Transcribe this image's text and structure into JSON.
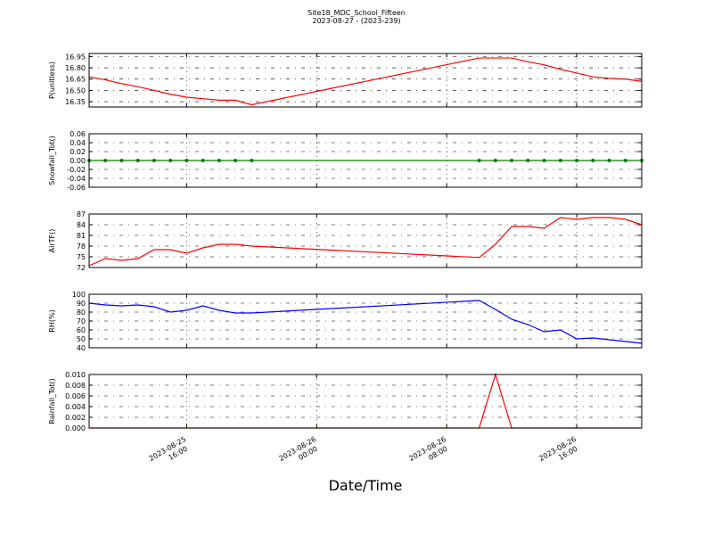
{
  "title": "Site18_MDC_School_Fifteen",
  "subtitle": "2023-08-27 - (2023-239)",
  "xlabel": "Date/Time",
  "xlim": [
    "2023-08-25 10:00",
    "2023-08-26 20:00"
  ],
  "xticks": [
    {
      "value": "2023-08-25 16:00",
      "label": [
        "2023-08-25",
        "16:00"
      ]
    },
    {
      "value": "2023-08-26 00:00",
      "label": [
        "2023-08-26",
        "00:00"
      ]
    },
    {
      "value": "2023-08-26 08:00",
      "label": [
        "2023-08-26",
        "08:00"
      ]
    },
    {
      "value": "2023-08-26 16:00",
      "label": [
        "2023-08-26",
        "16:00"
      ]
    }
  ],
  "x": [
    "2023-08-25 10:00",
    "2023-08-25 11:00",
    "2023-08-25 12:00",
    "2023-08-25 13:00",
    "2023-08-25 14:00",
    "2023-08-25 15:00",
    "2023-08-25 16:00",
    "2023-08-25 17:00",
    "2023-08-25 18:00",
    "2023-08-25 19:00",
    "2023-08-25 20:00",
    "2023-08-26 10:00",
    "2023-08-26 11:00",
    "2023-08-26 12:00",
    "2023-08-26 13:00",
    "2023-08-26 14:00",
    "2023-08-26 15:00",
    "2023-08-26 16:00",
    "2023-08-26 17:00",
    "2023-08-26 18:00",
    "2023-08-26 19:00",
    "2023-08-26 20:00"
  ],
  "chart_data": [
    {
      "type": "line",
      "ylabel": "P(unitless)",
      "ylim": [
        16.28,
        16.99
      ],
      "grid": true,
      "yticks": [
        {
          "value": 16.35,
          "label": "16.35"
        },
        {
          "value": 16.5,
          "label": "16.50"
        },
        {
          "value": 16.65,
          "label": "16.65"
        },
        {
          "value": 16.8,
          "label": "16.80"
        },
        {
          "value": 16.95,
          "label": "16.95"
        }
      ],
      "series": [
        {
          "color": "#ff0000",
          "values": [
            16.68,
            16.64,
            16.59,
            16.55,
            16.5,
            16.45,
            16.41,
            16.39,
            16.37,
            16.37,
            16.31,
            16.93,
            16.93,
            16.93,
            16.88,
            16.84,
            16.78,
            16.73,
            16.68,
            16.66,
            16.65,
            16.62
          ]
        }
      ]
    },
    {
      "type": "line",
      "ylabel": "Snowfall_Tot()",
      "ylim": [
        -0.06,
        0.06
      ],
      "grid": true,
      "markers": true,
      "yticks": [
        -0.06,
        -0.04,
        -0.02,
        {
          "value": 0,
          "label": "0.00"
        },
        0.02,
        0.04,
        0.06
      ],
      "series": [
        {
          "color": "#008000",
          "values": [
            0,
            0,
            0,
            0,
            0,
            0,
            0,
            0,
            0,
            0,
            0,
            0,
            0,
            0,
            0,
            0,
            0,
            0,
            0,
            0,
            0,
            0
          ]
        }
      ]
    },
    {
      "type": "line",
      "ylabel": "AirTF()",
      "ylim": [
        72,
        87
      ],
      "grid": true,
      "yticks": [
        72,
        75,
        78,
        81,
        84,
        87
      ],
      "series": [
        {
          "color": "#ff0000",
          "values": [
            72.5,
            74.5,
            74,
            74.5,
            77,
            77,
            76,
            77.5,
            78.5,
            78.5,
            78,
            74.8,
            78.5,
            83.5,
            83.5,
            83,
            86,
            85.5,
            86,
            86,
            85.5,
            84
          ]
        }
      ]
    },
    {
      "type": "line",
      "ylabel": "RH(%)",
      "ylim": [
        40,
        100
      ],
      "grid": true,
      "yticks": [
        40,
        50,
        60,
        70,
        80,
        90,
        100
      ],
      "series": [
        {
          "color": "#0000ff",
          "values": [
            90,
            88,
            87,
            88,
            86,
            80,
            82,
            87,
            82,
            79,
            79,
            93,
            83,
            72,
            66,
            58,
            60,
            50,
            51,
            49,
            47,
            45
          ]
        }
      ]
    },
    {
      "type": "line",
      "ylabel": "Rainfall_Tot()",
      "ylim": [
        0,
        0.01
      ],
      "grid": true,
      "yticks": [
        {
          "value": 0,
          "label": "0.000"
        },
        0.002,
        0.004,
        0.006,
        0.008,
        {
          "value": 0.01,
          "label": "0.010"
        }
      ],
      "series": [
        {
          "color": "#ff0000",
          "values": [
            0,
            0,
            0,
            0,
            0,
            0,
            0,
            0,
            0,
            0,
            0,
            0,
            0.01,
            0,
            0,
            0,
            0,
            0,
            0,
            0,
            0,
            0
          ]
        }
      ]
    }
  ]
}
